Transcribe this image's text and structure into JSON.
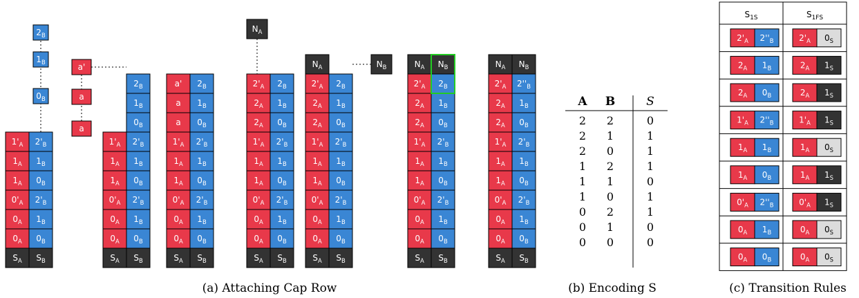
{
  "colors": {
    "a_tile": "#e8394a",
    "b_tile": "#3a86d4",
    "dark_tile": "#333333",
    "light_tile": "#dcdcdc",
    "highlight": "#22cc22",
    "tile_border": "#000000"
  },
  "panel_a": {
    "caption": "(a) Attaching Cap Row",
    "stacks": [
      {
        "a_col": [
          "S_A",
          "0_A",
          "0_A",
          "0'_A",
          "1_A",
          "1_A",
          "1'_A"
        ],
        "b_col": [
          "S_B",
          "0_B",
          "1_B",
          "2'_B",
          "0_B",
          "1_B",
          "2'_B"
        ],
        "b_tower": [
          "0_B",
          "1_B",
          "2_B"
        ]
      },
      {
        "free_a": [
          "a'",
          "a",
          "a"
        ],
        "a_col": [
          "S_A",
          "0_A",
          "0_A",
          "0'_A",
          "1_A",
          "1_A",
          "1'_A"
        ],
        "b_col": [
          "S_B",
          "0_B",
          "1_B",
          "2'_B",
          "0_B",
          "1_B",
          "2'_B",
          "0_B",
          "1_B",
          "2_B"
        ]
      },
      {
        "a_col": [
          "S_A",
          "0_A",
          "0_A",
          "0'_A",
          "1_A",
          "1_A",
          "1'_A",
          "a",
          "a",
          "a'"
        ],
        "b_col": [
          "S_B",
          "0_B",
          "1_B",
          "2'_B",
          "0_B",
          "1_B",
          "2'_B",
          "0_B",
          "1_B",
          "2_B"
        ]
      },
      {
        "a_col": [
          "S_A",
          "0_A",
          "0_A",
          "0'_A",
          "1_A",
          "1_A",
          "1'_A",
          "2_A",
          "2_A",
          "2'_A"
        ],
        "b_col": [
          "S_B",
          "0_B",
          "1_B",
          "2'_B",
          "0_B",
          "1_B",
          "2'_B",
          "0_B",
          "1_B",
          "2_B"
        ],
        "cap_a": "N_A"
      },
      {
        "a_col": [
          "S_A",
          "0_A",
          "0_A",
          "0'_A",
          "1_A",
          "1_A",
          "1'_A",
          "2_A",
          "2_A",
          "2'_A",
          "N_A"
        ],
        "b_col": [
          "S_B",
          "0_B",
          "1_B",
          "2'_B",
          "0_B",
          "1_B",
          "2'_B",
          "0_B",
          "1_B",
          "2_B"
        ],
        "cap_b": "N_B"
      },
      {
        "a_col": [
          "S_A",
          "0_A",
          "0_A",
          "0'_A",
          "1_A",
          "1_A",
          "1'_A",
          "2_A",
          "2_A",
          "2'_A",
          "N_A"
        ],
        "b_col": [
          "S_B",
          "0_B",
          "1_B",
          "2'_B",
          "0_B",
          "1_B",
          "2'_B",
          "0_B",
          "1_B",
          "2_B",
          "N_B"
        ]
      },
      {
        "a_col": [
          "S_A",
          "0_A",
          "0_A",
          "0'_A",
          "1_A",
          "1_A",
          "1'_A",
          "2_A",
          "2_A",
          "2'_A",
          "N_A"
        ],
        "b_col": [
          "S_B",
          "0_B",
          "1_B",
          "2'_B",
          "0_B",
          "1_B",
          "2'_B",
          "0_B",
          "1_B",
          "2''_B",
          "N_B"
        ]
      }
    ]
  },
  "panel_b": {
    "caption": "(b) Encoding S",
    "headers": [
      "A",
      "B",
      "S"
    ],
    "rows": [
      [
        "2",
        "2",
        "0"
      ],
      [
        "2",
        "1",
        "1"
      ],
      [
        "2",
        "0",
        "1"
      ],
      [
        "1",
        "2",
        "1"
      ],
      [
        "1",
        "1",
        "0"
      ],
      [
        "1",
        "0",
        "1"
      ],
      [
        "0",
        "2",
        "1"
      ],
      [
        "0",
        "1",
        "0"
      ],
      [
        "0",
        "0",
        "0"
      ]
    ]
  },
  "panel_c": {
    "caption": "(c) Transition Rules",
    "headers": [
      "S_1S_2",
      "S_1FS_2F"
    ],
    "rules": [
      {
        "in": [
          "2'_A",
          "2''_B"
        ],
        "out": [
          "2'_A",
          "0_S"
        ]
      },
      {
        "in": [
          "2_A",
          "1_B"
        ],
        "out": [
          "2_A",
          "1_S"
        ]
      },
      {
        "in": [
          "2_A",
          "0_B"
        ],
        "out": [
          "2_A",
          "1_S"
        ]
      },
      {
        "in": [
          "1'_A",
          "2''_B"
        ],
        "out": [
          "1'_A",
          "1_S"
        ]
      },
      {
        "in": [
          "1_A",
          "1_B"
        ],
        "out": [
          "1_A",
          "0_S"
        ]
      },
      {
        "in": [
          "1_A",
          "0_B"
        ],
        "out": [
          "1_A",
          "1_S"
        ]
      },
      {
        "in": [
          "0'_A",
          "2''_B"
        ],
        "out": [
          "0'_A",
          "1_S"
        ]
      },
      {
        "in": [
          "0_A",
          "1_B"
        ],
        "out": [
          "0_A",
          "0_S"
        ]
      },
      {
        "in": [
          "0_A",
          "0_B"
        ],
        "out": [
          "0_A",
          "0_S"
        ]
      }
    ]
  }
}
